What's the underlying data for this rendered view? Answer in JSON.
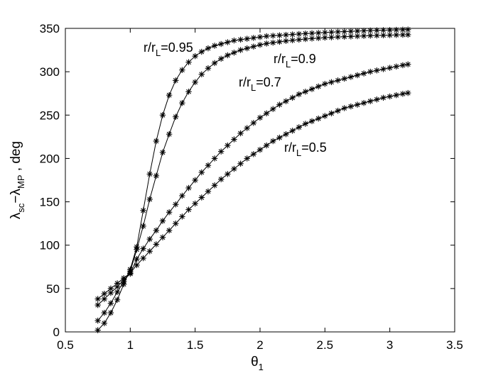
{
  "chart_data": {
    "type": "line",
    "xlim": [
      0.5,
      3.5
    ],
    "ylim": [
      0,
      350
    ],
    "x_ticks": [
      "0.5",
      "1",
      "1.5",
      "2",
      "2.5",
      "3",
      "3.5"
    ],
    "y_ticks": [
      "0",
      "50",
      "100",
      "150",
      "200",
      "250",
      "300",
      "350"
    ],
    "xlabel": {
      "base": "θ",
      "sub": "1"
    },
    "ylabel": {
      "a": "λ",
      "a_sub": "sc",
      "dash": "−",
      "b": "λ",
      "b_sub": "MP",
      "unit": " , deg"
    },
    "marker": "asterisk",
    "grid": false,
    "x": [
      0.75,
      0.8,
      0.85,
      0.9,
      0.95,
      1.0,
      1.05,
      1.1,
      1.15,
      1.2,
      1.25,
      1.3,
      1.35,
      1.4,
      1.45,
      1.5,
      1.55,
      1.6,
      1.65,
      1.7,
      1.75,
      1.8,
      1.85,
      1.9,
      1.95,
      2.0,
      2.05,
      2.1,
      2.15,
      2.2,
      2.25,
      2.3,
      2.35,
      2.4,
      2.45,
      2.5,
      2.55,
      2.6,
      2.65,
      2.7,
      2.75,
      2.8,
      2.85,
      2.9,
      2.95,
      3.0,
      3.05,
      3.1,
      3.14
    ],
    "series": [
      {
        "label": {
          "pre": "r/r",
          "sub": "L",
          "post": "=0.95"
        },
        "values": [
          2,
          10,
          22,
          37,
          55,
          72,
          98,
          140,
          182,
          220,
          250,
          273,
          290,
          302,
          311,
          318,
          323,
          327,
          330,
          332,
          334,
          336,
          337,
          338,
          339,
          340,
          341,
          341.5,
          342,
          342.5,
          343,
          343.5,
          344,
          344.4,
          344.8,
          345.2,
          345.6,
          346,
          346.3,
          346.6,
          346.9,
          347.2,
          347.5,
          347.7,
          347.9,
          348.1,
          348.3,
          348.5,
          348.6
        ]
      },
      {
        "label": {
          "pre": "r/r",
          "sub": "L",
          "post": "=0.9"
        },
        "values": [
          13,
          22,
          33,
          46,
          58,
          70,
          95,
          122,
          153,
          180,
          207,
          228,
          248,
          264,
          277,
          288,
          297,
          304,
          310,
          315,
          319,
          322,
          325,
          327,
          329,
          331,
          332.5,
          333.5,
          334.5,
          335.5,
          336.3,
          337,
          337.7,
          338.3,
          338.8,
          339.3,
          339.7,
          340.1,
          340.4,
          340.7,
          341,
          341.3,
          341.6,
          341.8,
          342,
          342.2,
          342.4,
          342.6,
          342.7
        ]
      },
      {
        "label": {
          "pre": "r/r",
          "sub": "L",
          "post": "=0.7"
        },
        "values": [
          31,
          38,
          45,
          52,
          60,
          67,
          84,
          96,
          107,
          117,
          128,
          138,
          147,
          157,
          166,
          175,
          184,
          192,
          200,
          208,
          215,
          222,
          229,
          235,
          241,
          247,
          252,
          257,
          262,
          266,
          270,
          274,
          277,
          280,
          283,
          286,
          288,
          290,
          292,
          294,
          296,
          298,
          300,
          301.5,
          303,
          304.5,
          306,
          307.5,
          308.5
        ]
      },
      {
        "label": {
          "pre": "r/r",
          "sub": "L",
          "post": "=0.5"
        },
        "values": [
          38,
          44,
          50,
          56,
          62,
          68,
          77,
          85,
          93,
          101,
          109,
          117,
          125,
          133,
          141,
          148,
          155,
          162,
          169,
          176,
          182,
          188,
          194,
          200,
          205,
          210,
          215,
          220,
          224,
          228,
          232,
          236,
          240,
          243,
          246,
          249,
          252,
          255,
          258,
          260,
          262,
          264,
          266,
          268,
          270,
          271.5,
          273,
          274.5,
          275.5
        ]
      }
    ]
  }
}
